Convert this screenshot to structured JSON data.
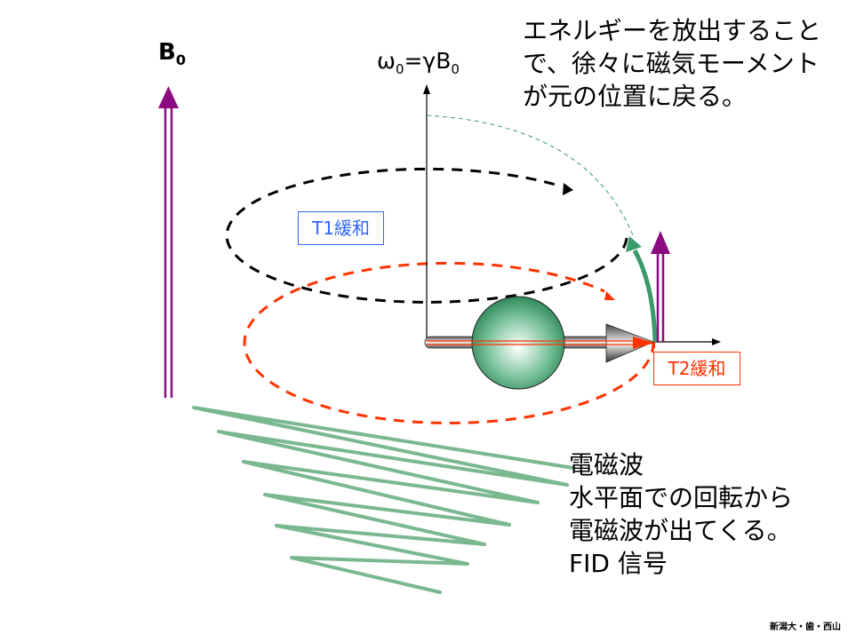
{
  "labels": {
    "b0": "B",
    "b0_sub": "0",
    "omega": "ω",
    "omega_sub": "0",
    "omega_eq": "=γB",
    "omega_eq_sub": "0",
    "t1": "T1緩和",
    "t2": "T2緩和"
  },
  "top_text": [
    "エネルギーを放出すること",
    "で、徐々に磁気モーメント",
    "が元の位置に戻る。"
  ],
  "bottom_text": [
    "電磁波",
    "水平面での回転から",
    "電磁波が出てくる。",
    "FID 信号"
  ],
  "footer": "新潟大・歯・西山",
  "colors": {
    "purple": "#8b0a7f",
    "red": "#ff3300",
    "green": "#3a9a6a",
    "wave_green": "#7ab890",
    "blue_box": "#3366ff"
  }
}
